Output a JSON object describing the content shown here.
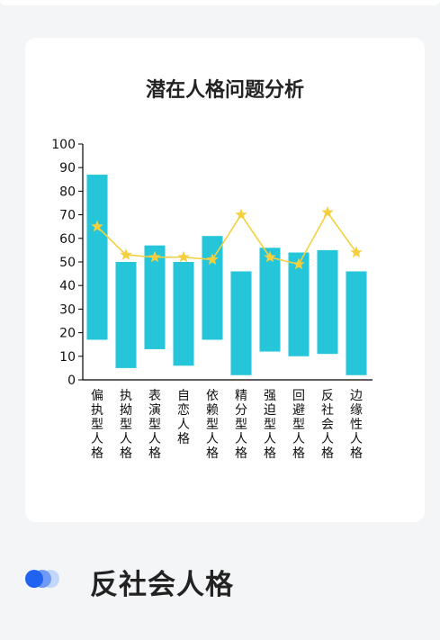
{
  "colors": {
    "bar": "#26c6da",
    "line": "#f4d03f",
    "axis": "#000000",
    "accent": "#1f63f0"
  },
  "chart_data": {
    "type": "bar",
    "title": "潜在人格问题分析",
    "categories": [
      "偏执型人格",
      "执拗型人格",
      "表演型人格",
      "自恋人格",
      "依赖型人格",
      "精分型人格",
      "强迫型人格",
      "回避型人格",
      "反社会人格",
      "边缘性人格"
    ],
    "bar_ranges": [
      [
        17,
        87
      ],
      [
        5,
        50
      ],
      [
        13,
        57
      ],
      [
        6,
        50
      ],
      [
        17,
        61
      ],
      [
        2,
        46
      ],
      [
        12,
        56
      ],
      [
        10,
        54
      ],
      [
        11,
        55
      ],
      [
        2,
        46
      ]
    ],
    "line_values": [
      65,
      53,
      52,
      52,
      51,
      70,
      52,
      49,
      71,
      54
    ],
    "ylim": [
      0,
      100
    ],
    "yticks": [
      0,
      10,
      20,
      30,
      40,
      50,
      60,
      70,
      80,
      90,
      100
    ],
    "grid": false
  },
  "section": {
    "title": "反社会人格",
    "icon": "three-dots-icon"
  }
}
